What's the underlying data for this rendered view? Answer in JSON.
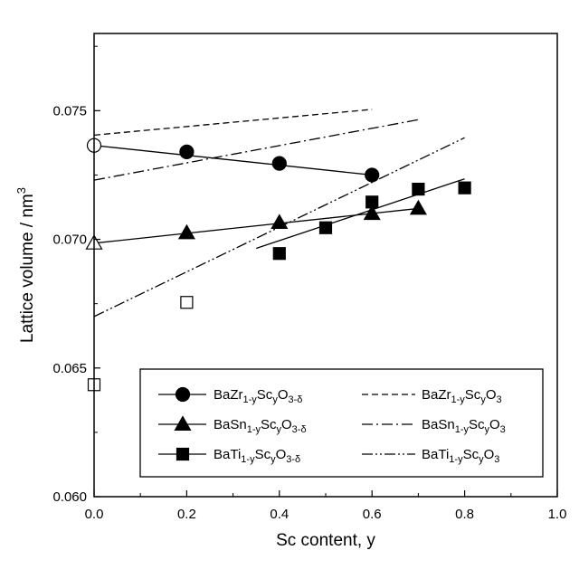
{
  "chart_data": {
    "type": "scatter",
    "xlabel": "Sc content, y",
    "ylabel_text": "Lattice volume / nm",
    "ylabel_sup": "3",
    "xlim": [
      0.0,
      1.0
    ],
    "ylim": [
      0.06,
      0.078
    ],
    "x_ticks": [
      {
        "value": 0.0,
        "label": "0.0"
      },
      {
        "value": 0.2,
        "label": "0.2"
      },
      {
        "value": 0.4,
        "label": "0.4"
      },
      {
        "value": 0.6,
        "label": "0.6"
      },
      {
        "value": 0.8,
        "label": "0.8"
      },
      {
        "value": 1.0,
        "label": "1.0"
      }
    ],
    "y_ticks": [
      {
        "value": 0.06,
        "label": "0.060"
      },
      {
        "value": 0.065,
        "label": "0.065"
      },
      {
        "value": 0.07,
        "label": "0.070"
      },
      {
        "value": 0.075,
        "label": "0.075"
      }
    ],
    "grid": false,
    "legend_position": "bottom",
    "series": [
      {
        "key": "zr",
        "marker": "circle",
        "points": [
          {
            "x": 0.0,
            "y": 0.07365,
            "filled": false
          },
          {
            "x": 0.2,
            "y": 0.0734,
            "filled": true
          },
          {
            "x": 0.4,
            "y": 0.07295,
            "filled": true
          },
          {
            "x": 0.6,
            "y": 0.0725,
            "filled": true
          }
        ],
        "fit": {
          "x": [
            0.0,
            0.6
          ],
          "y": [
            0.07365,
            0.0725
          ],
          "dash": "solid"
        },
        "calc": {
          "x": [
            0.0,
            0.6
          ],
          "y": [
            0.07405,
            0.07505
          ],
          "dash": "dashed"
        },
        "legend_fit": {
          "base": "BaZr",
          "sub1": "1-y",
          "mid": "Sc",
          "sub2": "y",
          "tail": "O",
          "sub3": "3-δ"
        },
        "legend_calc": {
          "base": "BaZr",
          "sub1": "1-y",
          "mid": "Sc",
          "sub2": "y",
          "tail": "O",
          "sub3": "3"
        }
      },
      {
        "key": "sn",
        "marker": "triangle",
        "points": [
          {
            "x": 0.0,
            "y": 0.06985,
            "filled": false
          },
          {
            "x": 0.2,
            "y": 0.07025,
            "filled": true
          },
          {
            "x": 0.4,
            "y": 0.07065,
            "filled": true
          },
          {
            "x": 0.6,
            "y": 0.071,
            "filled": true
          },
          {
            "x": 0.7,
            "y": 0.0712,
            "filled": true
          }
        ],
        "fit": {
          "x": [
            0.0,
            0.7
          ],
          "y": [
            0.06985,
            0.0712
          ],
          "dash": "solid"
        },
        "calc": {
          "x": [
            0.0,
            0.7
          ],
          "y": [
            0.0723,
            0.07465
          ],
          "dash": "dashdot"
        },
        "legend_fit": {
          "base": "BaSn",
          "sub1": "1-y",
          "mid": "Sc",
          "sub2": "y",
          "tail": "O",
          "sub3": "3-δ"
        },
        "legend_calc": {
          "base": "BaSn",
          "sub1": "1-y",
          "mid": "Sc",
          "sub2": "y",
          "tail": "O",
          "sub3": "3"
        }
      },
      {
        "key": "ti",
        "marker": "square",
        "points": [
          {
            "x": 0.0,
            "y": 0.06435,
            "filled": false
          },
          {
            "x": 0.2,
            "y": 0.06755,
            "filled": false
          },
          {
            "x": 0.4,
            "y": 0.06945,
            "filled": true
          },
          {
            "x": 0.5,
            "y": 0.07045,
            "filled": true
          },
          {
            "x": 0.6,
            "y": 0.07145,
            "filled": true
          },
          {
            "x": 0.7,
            "y": 0.07195,
            "filled": true
          },
          {
            "x": 0.8,
            "y": 0.072,
            "filled": true
          }
        ],
        "fit": {
          "x": [
            0.35,
            0.8
          ],
          "y": [
            0.06965,
            0.07235
          ],
          "dash": "solid"
        },
        "calc": {
          "x": [
            0.0,
            0.8
          ],
          "y": [
            0.067,
            0.07395
          ],
          "dash": "dashdotdot"
        },
        "legend_fit": {
          "base": "BaTi",
          "sub1": "1-y",
          "mid": "Sc",
          "sub2": "y",
          "tail": "O",
          "sub3": "3-δ"
        },
        "legend_calc": {
          "base": "BaTi",
          "sub1": "1-y",
          "mid": "Sc",
          "sub2": "y",
          "tail": "O",
          "sub3": "3"
        }
      }
    ]
  }
}
